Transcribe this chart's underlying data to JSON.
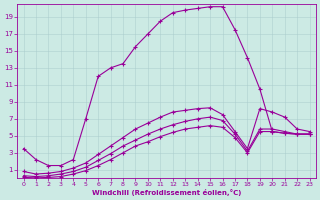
{
  "xlabel": "Windchill (Refroidissement éolien,°C)",
  "bg_color": "#cceae4",
  "line_color": "#990099",
  "grid_color": "#aacccc",
  "xlim": [
    -0.5,
    23.5
  ],
  "ylim": [
    0,
    20.5
  ],
  "xticks": [
    0,
    1,
    2,
    3,
    4,
    5,
    6,
    7,
    8,
    9,
    10,
    11,
    12,
    13,
    14,
    15,
    16,
    17,
    18,
    19,
    20,
    21,
    22,
    23
  ],
  "yticks": [
    1,
    3,
    5,
    7,
    9,
    11,
    13,
    15,
    17,
    19
  ],
  "curves": {
    "line1": {
      "x": [
        0,
        1,
        2,
        3,
        4,
        5,
        6,
        7,
        8,
        9,
        10,
        11,
        12,
        13,
        14,
        15,
        16,
        17,
        18,
        19,
        20,
        21,
        22,
        23
      ],
      "y": [
        3.5,
        2.2,
        1.5,
        1.5,
        2.2,
        7.0,
        12.0,
        13.0,
        13.5,
        15.5,
        17.0,
        18.5,
        19.5,
        19.8,
        20.0,
        20.2,
        20.2,
        17.5,
        14.2,
        10.5,
        5.5,
        5.3,
        5.2,
        5.2
      ]
    },
    "line2": {
      "x": [
        0,
        1,
        2,
        3,
        4,
        5,
        6,
        7,
        8,
        9,
        10,
        11,
        12,
        13,
        14,
        15,
        16,
        17,
        18,
        19,
        20,
        21,
        22,
        23
      ],
      "y": [
        0.8,
        0.5,
        0.6,
        0.8,
        1.2,
        1.8,
        2.8,
        3.8,
        4.8,
        5.8,
        6.5,
        7.2,
        7.8,
        8.0,
        8.2,
        8.3,
        7.5,
        5.5,
        3.5,
        8.2,
        7.8,
        7.2,
        5.8,
        5.5
      ]
    },
    "line3": {
      "x": [
        0,
        1,
        2,
        3,
        4,
        5,
        6,
        7,
        8,
        9,
        10,
        11,
        12,
        13,
        14,
        15,
        16,
        17,
        18,
        19,
        20,
        21,
        22,
        23
      ],
      "y": [
        0.3,
        0.2,
        0.3,
        0.5,
        0.8,
        1.3,
        2.1,
        2.9,
        3.8,
        4.5,
        5.2,
        5.8,
        6.3,
        6.7,
        7.0,
        7.2,
        6.8,
        5.2,
        3.2,
        5.8,
        5.8,
        5.5,
        5.2,
        5.2
      ]
    },
    "line4": {
      "x": [
        0,
        1,
        2,
        3,
        4,
        5,
        6,
        7,
        8,
        9,
        10,
        11,
        12,
        13,
        14,
        15,
        16,
        17,
        18,
        19,
        20,
        21,
        22,
        23
      ],
      "y": [
        0.1,
        0.05,
        0.1,
        0.2,
        0.5,
        0.9,
        1.5,
        2.2,
        3.0,
        3.8,
        4.3,
        4.9,
        5.4,
        5.8,
        6.0,
        6.2,
        6.0,
        4.8,
        3.0,
        5.5,
        5.5,
        5.3,
        5.2,
        5.2
      ]
    }
  }
}
